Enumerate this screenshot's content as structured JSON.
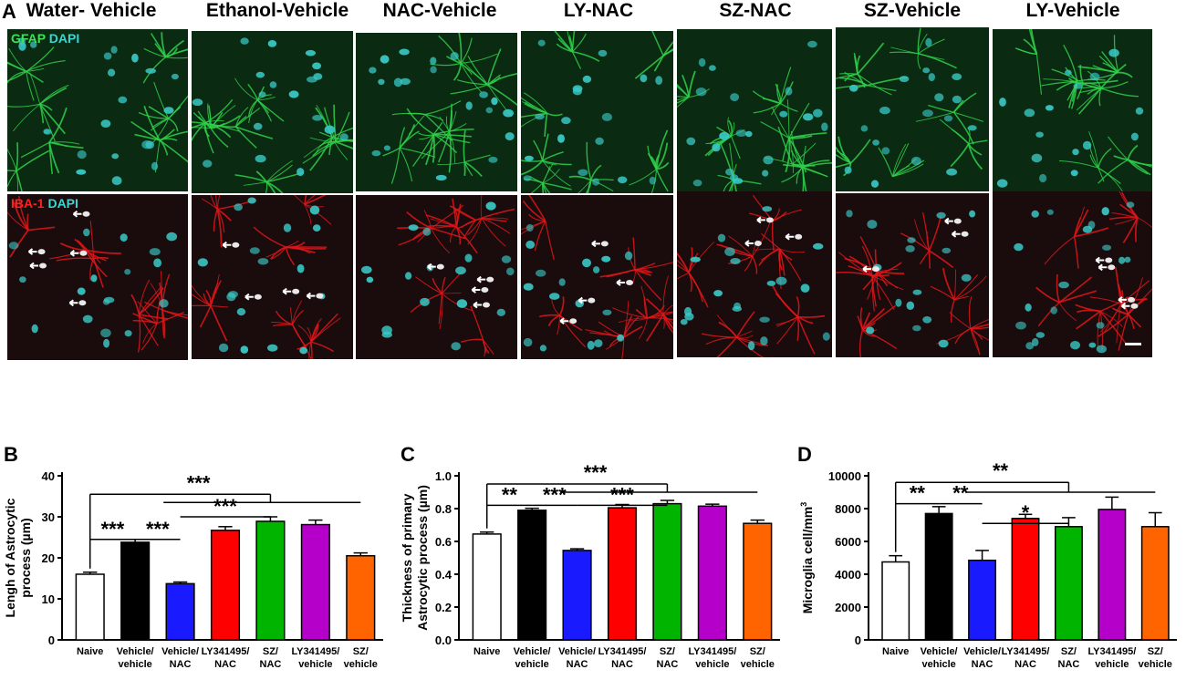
{
  "figure": {
    "panel_a_letter": "A",
    "columns": [
      "Water- Vehicle",
      "Ethanol-Vehicle",
      "NAC-Vehicle",
      "LY-NAC",
      "SZ-NAC",
      "SZ-Vehicle",
      "LY-Vehicle"
    ],
    "row_labels": {
      "gfap": {
        "marker": "GFAP",
        "counter": "DAPI"
      },
      "iba": {
        "marker": "IBA-1",
        "counter": "DAPI"
      }
    },
    "colors": {
      "gfap_bg": "#0b2a12",
      "gfap_fiber": "#2fd04a",
      "iba_bg": "#1a0b0d",
      "iba_fiber": "#e0161a",
      "nucleus": "#39c9c6",
      "arrow": "#ffffff"
    }
  },
  "chart_data": [
    {
      "panel": "B",
      "type": "bar",
      "ylabel_line1": "Lengh of Astrocytic",
      "ylabel_line2": "process (µm)",
      "ylim": [
        0,
        40
      ],
      "yticks": [
        0,
        10,
        20,
        30,
        40
      ],
      "categories": [
        [
          "Naive"
        ],
        [
          "Vehicle/",
          "vehicle"
        ],
        [
          "Vehicle/",
          "NAC"
        ],
        [
          "LY341495/",
          "NAC"
        ],
        [
          "SZ/",
          "NAC"
        ],
        [
          "LY341495/",
          "vehicle"
        ],
        [
          "SZ/",
          "vehicle"
        ]
      ],
      "values": [
        16,
        23.8,
        13.7,
        26.7,
        28.9,
        28.1,
        20.5
      ],
      "errors": [
        0.5,
        0.7,
        0.4,
        0.9,
        1.1,
        1.1,
        0.7
      ],
      "colors": [
        "#ffffff",
        "#000000",
        "#1a1aff",
        "#ff0000",
        "#00b400",
        "#b400c8",
        "#ff6400"
      ],
      "sig": [
        {
          "label": "***",
          "from": 1,
          "to": 2,
          "level": 24.5
        },
        {
          "label": "***",
          "from": 2,
          "to": 3,
          "level": 24.5
        },
        {
          "label": "***",
          "from": 3,
          "to": 5,
          "level": 30
        },
        {
          "label": "***",
          "from": 1,
          "to": 6,
          "level": 35.5,
          "branch_from": 3,
          "branch_to": 7,
          "branch_level": 33.5
        }
      ]
    },
    {
      "panel": "C",
      "type": "bar",
      "ylabel_line1": "Thickness of primary",
      "ylabel_line2": "Astrocytic process (µm)",
      "ylim": [
        0,
        1.0
      ],
      "yticks": [
        0.0,
        0.2,
        0.4,
        0.6,
        0.8,
        1.0
      ],
      "categories": [
        [
          "Naive"
        ],
        [
          "Vehicle/",
          "vehicle"
        ],
        [
          "Vehicle/",
          "NAC"
        ],
        [
          "LY341495/",
          "NAC"
        ],
        [
          "SZ/",
          "NAC"
        ],
        [
          "LY341495/",
          "vehicle"
        ],
        [
          "SZ/",
          "vehicle"
        ]
      ],
      "values": [
        0.645,
        0.79,
        0.545,
        0.805,
        0.83,
        0.815,
        0.71
      ],
      "errors": [
        0.012,
        0.012,
        0.01,
        0.02,
        0.02,
        0.012,
        0.02
      ],
      "colors": [
        "#ffffff",
        "#000000",
        "#1a1aff",
        "#ff0000",
        "#00b400",
        "#b400c8",
        "#ff6400"
      ],
      "sig": [
        {
          "label": "**",
          "from": 1,
          "to": 2,
          "level": 0.82
        },
        {
          "label": "***",
          "from": 2,
          "to": 3,
          "level": 0.82
        },
        {
          "label": "***",
          "from": 3,
          "to": 5,
          "level": 0.82
        },
        {
          "label": "***",
          "from": 1,
          "to": 6,
          "level": 0.95,
          "branch_from": 3,
          "branch_to": 7,
          "branch_level": 0.9
        }
      ]
    },
    {
      "panel": "D",
      "type": "bar",
      "ylabel_line1": "Microglia cell/mm",
      "ylabel_sup": "3",
      "ylim": [
        0,
        10000
      ],
      "yticks": [
        0,
        2000,
        4000,
        6000,
        8000,
        10000
      ],
      "categories": [
        [
          "Naive"
        ],
        [
          "Vehicle/",
          "vehicle"
        ],
        [
          "Vehicle/",
          "NAC"
        ],
        [
          "LY341495/",
          "NAC"
        ],
        [
          "SZ/",
          "NAC"
        ],
        [
          "LY341495/",
          "vehicle"
        ],
        [
          "SZ/",
          "vehicle"
        ]
      ],
      "values": [
        4750,
        7700,
        4850,
        7400,
        6900,
        7950,
        6900
      ],
      "errors": [
        380,
        420,
        600,
        250,
        550,
        750,
        850
      ],
      "colors": [
        "#ffffff",
        "#000000",
        "#1a1aff",
        "#ff0000",
        "#00b400",
        "#b400c8",
        "#ff6400"
      ],
      "sig": [
        {
          "label": "**",
          "from": 1,
          "to": 2,
          "level": 8300
        },
        {
          "label": "**",
          "from": 2,
          "to": 3,
          "level": 8300
        },
        {
          "label": "*",
          "from": 3,
          "to": 5,
          "level": 7100
        },
        {
          "label": "**",
          "from": 1,
          "to": 6,
          "level": 9600,
          "branch_from": 3,
          "branch_to": 7,
          "branch_level": 9000
        }
      ]
    }
  ]
}
